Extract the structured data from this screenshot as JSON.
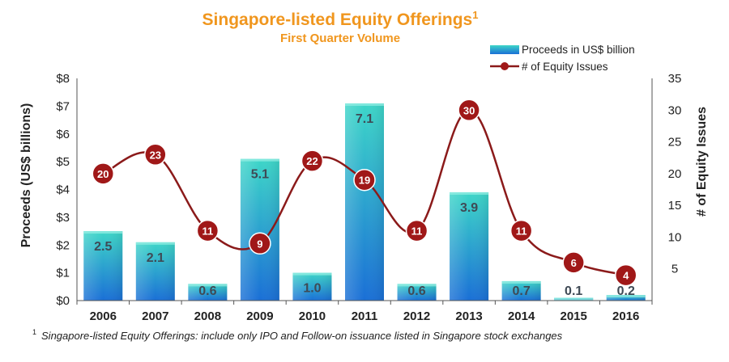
{
  "chart_data": {
    "type": "bar",
    "title": "Singapore-listed Equity Offerings",
    "title_superscript": "1",
    "subtitle": "First Quarter Volume",
    "categories": [
      "2006",
      "2007",
      "2008",
      "2009",
      "2010",
      "2011",
      "2012",
      "2013",
      "2014",
      "2015",
      "2016"
    ],
    "series": [
      {
        "name": "Proceeds in US$ billion",
        "type": "bar",
        "axis": "left",
        "values": [
          2.5,
          2.1,
          0.6,
          5.1,
          1.0,
          7.1,
          0.6,
          3.9,
          0.7,
          0.1,
          0.2
        ],
        "labels": [
          "2.5",
          "2.1",
          "0.6",
          "5.1",
          "1.0",
          "7.1",
          "0.6",
          "3.9",
          "0.7",
          "0.1",
          "0.2"
        ]
      },
      {
        "name": "# of Equity Issues",
        "type": "line",
        "axis": "right",
        "values": [
          20,
          23,
          11,
          9,
          22,
          19,
          11,
          30,
          11,
          6,
          4
        ]
      }
    ],
    "ylabel": "Proceeds (US$ billions)",
    "y2label": "# of Equity Issues",
    "ylim": [
      0,
      8
    ],
    "y2lim": [
      0,
      35
    ],
    "yticks": [
      "$0",
      "$1",
      "$2",
      "$3",
      "$4",
      "$5",
      "$6",
      "$7",
      "$8"
    ],
    "y2ticks": [
      "5",
      "10",
      "15",
      "20",
      "25",
      "30",
      "35"
    ],
    "legend_position": "top-right",
    "footnote_marker": "1",
    "footnote": "Singapore-listed Equity Offerings: include only IPO and Follow-on issuance listed in Singapore stock exchanges"
  },
  "colors": {
    "title": "#f0961e",
    "bar_top": "#3dd6c8",
    "bar_bottom": "#1a6fd6",
    "bar_label": "#3f4a55",
    "line": "#8b1a1a",
    "marker": "#a01818",
    "marker_text": "#ffffff",
    "axis_text": "#222222"
  }
}
